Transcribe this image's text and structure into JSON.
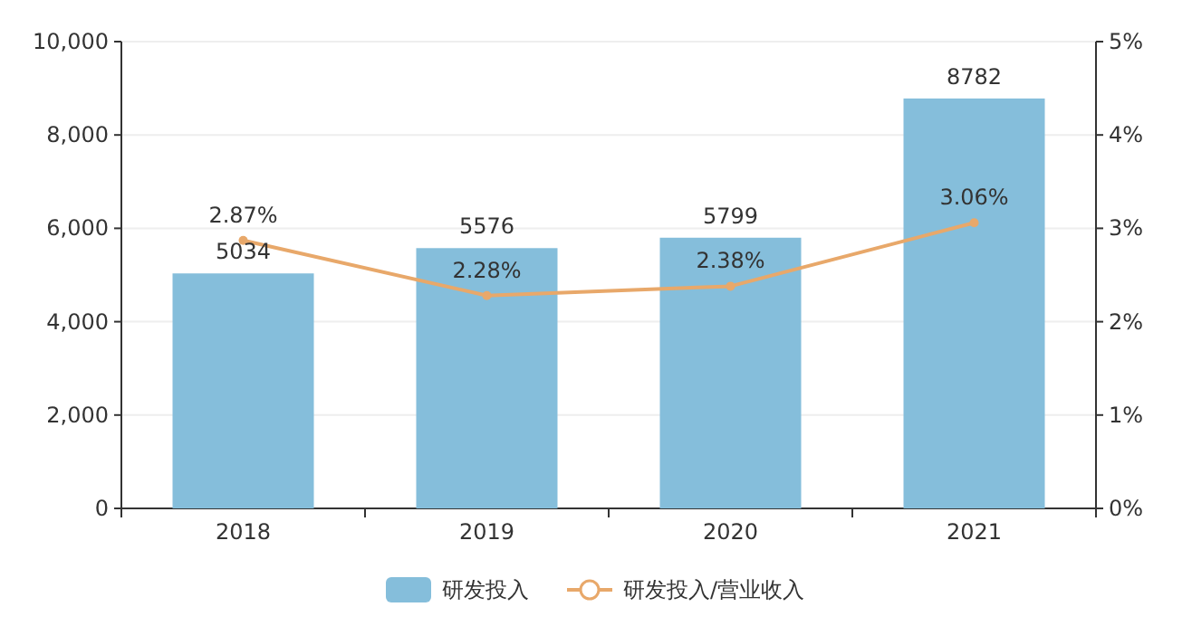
{
  "chart_data": {
    "type": "bar",
    "categories": [
      "2018",
      "2019",
      "2020",
      "2021"
    ],
    "series": [
      {
        "name": "研发投入",
        "color": "#85bedb",
        "values": [
          5034,
          5576,
          5799,
          8782
        ],
        "value_labels": [
          "5034",
          "5576",
          "5799",
          "8782"
        ]
      },
      {
        "name": "研发投入/营业收入",
        "type": "line",
        "axis": "y2",
        "color": "#e8a86a",
        "marker": "circle",
        "values": [
          2.87,
          2.28,
          2.38,
          3.06
        ],
        "value_labels": [
          "2.87%",
          "2.28%",
          "2.38%",
          "3.06%"
        ]
      }
    ],
    "ylim": [
      0,
      10000
    ],
    "yticks": [
      0,
      {
        "value": 2000,
        "label": "2,000"
      },
      {
        "value": 4000,
        "label": "4,000"
      },
      {
        "value": 6000,
        "label": "6,000"
      },
      {
        "value": 8000,
        "label": "8,000"
      },
      {
        "value": 10000,
        "label": "10,000"
      }
    ],
    "y2lim": [
      0,
      5
    ],
    "y2ticks": [
      {
        "value": 0,
        "label": "0%"
      },
      {
        "value": 1,
        "label": "1%"
      },
      {
        "value": 2,
        "label": "2%"
      },
      {
        "value": 3,
        "label": "3%"
      },
      {
        "value": 4,
        "label": "4%"
      },
      {
        "value": 5,
        "label": "5%"
      }
    ],
    "grid": "y",
    "legend": "bottom"
  }
}
